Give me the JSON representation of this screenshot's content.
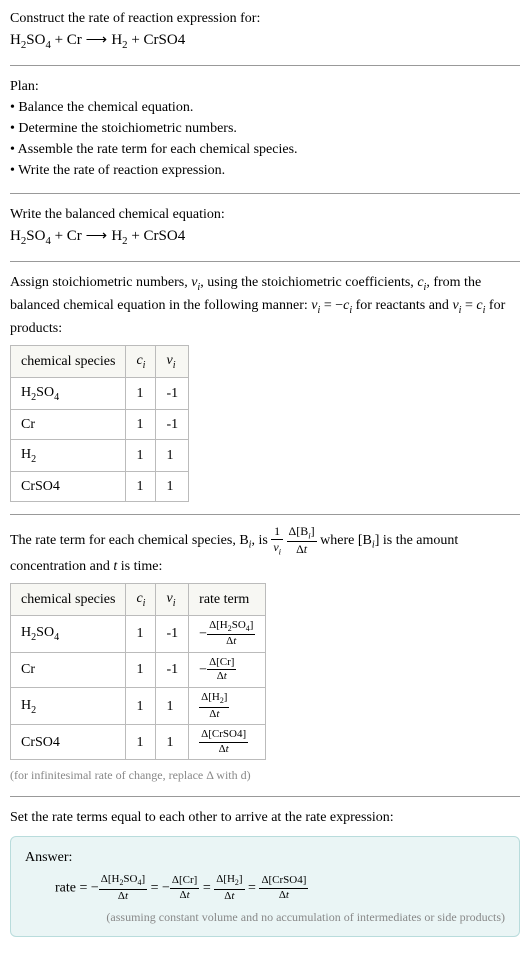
{
  "header": {
    "prompt": "Construct the rate of reaction expression for:"
  },
  "plan": {
    "title": "Plan:",
    "items": [
      "Balance the chemical equation.",
      "Determine the stoichiometric numbers.",
      "Assemble the rate term for each chemical species.",
      "Write the rate of reaction expression."
    ]
  },
  "balanced": {
    "title": "Write the balanced chemical equation:"
  },
  "stoich": {
    "columns_species": "chemical species",
    "table1": {
      "rows": [
        {
          "sp": "H₂SO₄",
          "c": "1",
          "v": "-1"
        },
        {
          "sp": "Cr",
          "c": "1",
          "v": "-1"
        },
        {
          "sp": "H₂",
          "c": "1",
          "v": "1"
        },
        {
          "sp": "CrSO4",
          "c": "1",
          "v": "1"
        }
      ]
    },
    "table2": {
      "header_rate": "rate term",
      "rows": [
        {
          "sp": "H₂SO₄",
          "c": "1",
          "v": "-1"
        },
        {
          "sp": "Cr",
          "c": "1",
          "v": "-1"
        },
        {
          "sp": "H₂",
          "c": "1",
          "v": "1"
        },
        {
          "sp": "CrSO4",
          "c": "1",
          "v": "1"
        }
      ]
    },
    "note": "(for infinitesimal rate of change, replace Δ with d)"
  },
  "final": {
    "title": "Set the rate terms equal to each other to arrive at the rate expression:"
  },
  "answer": {
    "label": "Answer:",
    "caption": "(assuming constant volume and no accumulation of intermediates or side products)"
  },
  "colors": {
    "text": "#000000",
    "rule": "#999999",
    "table_border": "#bbbbbb",
    "table_header_bg": "#f7f7f3",
    "note": "#888888",
    "answer_bg": "#eaf5f5",
    "answer_border": "#b9dcdc"
  }
}
